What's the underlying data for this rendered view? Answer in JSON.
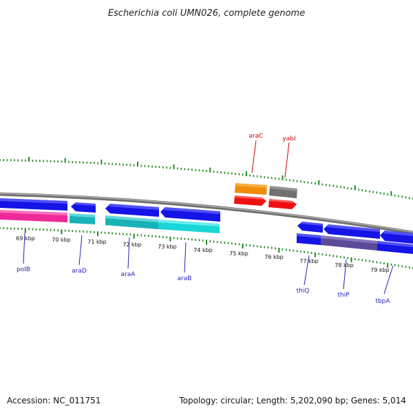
{
  "title": "Escherichia coli UMN026, complete genome",
  "footer": {
    "accession": "Accession: NC_011751",
    "topology": "Topology: circular; Length: 5,202,090 bp; Genes: 5,014"
  },
  "colors": {
    "backbone": "#8c8c8c",
    "tick": "#1a8a1a",
    "forward_label": "#cc0000",
    "reverse_label": "#1f1fb4",
    "blue": "#1414e6",
    "cyan": "#1ad6d6",
    "teal": "#18b2b8",
    "magenta": "#ee2a9a",
    "orange": "#f08c0c",
    "gray": "#707070",
    "red": "#ee1111",
    "purple": "#5a4a9a"
  },
  "scale_labels": [
    "69 kbp",
    "70 kbp",
    "71 kbp",
    "72 kbp",
    "73 kbp",
    "74 kbp",
    "75 kbp",
    "76 kbp",
    "77 kbp",
    "78 kbp",
    "79 kbp"
  ],
  "genes_top": [
    {
      "label": "araC",
      "color": "red"
    },
    {
      "label": "yabI",
      "color": "red"
    }
  ],
  "genes_bottom": [
    {
      "label": "polB",
      "color": "blue"
    },
    {
      "label": "araD",
      "color": "blue"
    },
    {
      "label": "araA",
      "color": "blue"
    },
    {
      "label": "araB",
      "color": "blue"
    },
    {
      "label": "thiQ",
      "color": "blue"
    },
    {
      "label": "thiP",
      "color": "blue"
    },
    {
      "label": "tbpA",
      "color": "blue"
    }
  ]
}
